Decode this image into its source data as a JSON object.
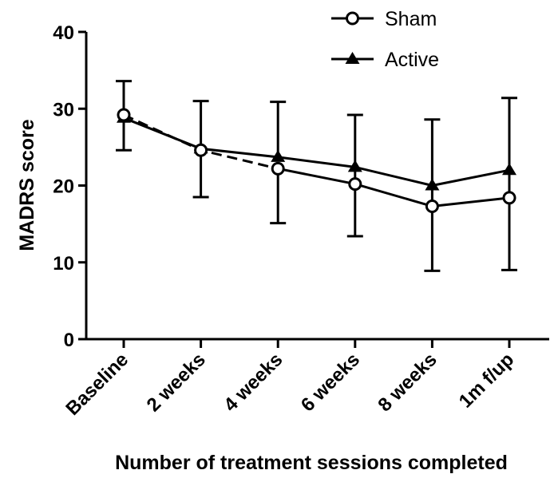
{
  "chart_data": {
    "type": "line",
    "title": "",
    "xlabel": "Number of treatment sessions completed",
    "ylabel": "MADRS score",
    "categories": [
      "Baseline",
      "2 weeks",
      "4 weeks",
      "6 weeks",
      "8 weeks",
      "1m f/up"
    ],
    "ylim": [
      0,
      40
    ],
    "yticks": [
      "0",
      "10",
      "20",
      "30",
      "40"
    ],
    "grid": false,
    "legend_position": "top-right",
    "series": [
      {
        "name": "Sham",
        "marker": "open-circle",
        "line": "dashed-then-solid",
        "color": "#000000",
        "values": [
          29.2,
          24.6,
          22.2,
          20.2,
          17.3,
          18.4
        ],
        "error_upper": [
          33.6,
          null,
          null,
          29.2,
          28.6,
          31.4
        ],
        "error_lower": [
          null,
          18.5,
          15.1,
          13.4,
          8.9,
          9.0
        ]
      },
      {
        "name": "Active",
        "marker": "filled-triangle",
        "line": "solid",
        "color": "#000000",
        "values": [
          28.8,
          24.8,
          23.7,
          22.4,
          20.0,
          22.0
        ],
        "error_upper": [
          null,
          31.0,
          30.9,
          null,
          null,
          null
        ],
        "error_lower": [
          24.6,
          null,
          null,
          null,
          null,
          null
        ]
      }
    ]
  }
}
